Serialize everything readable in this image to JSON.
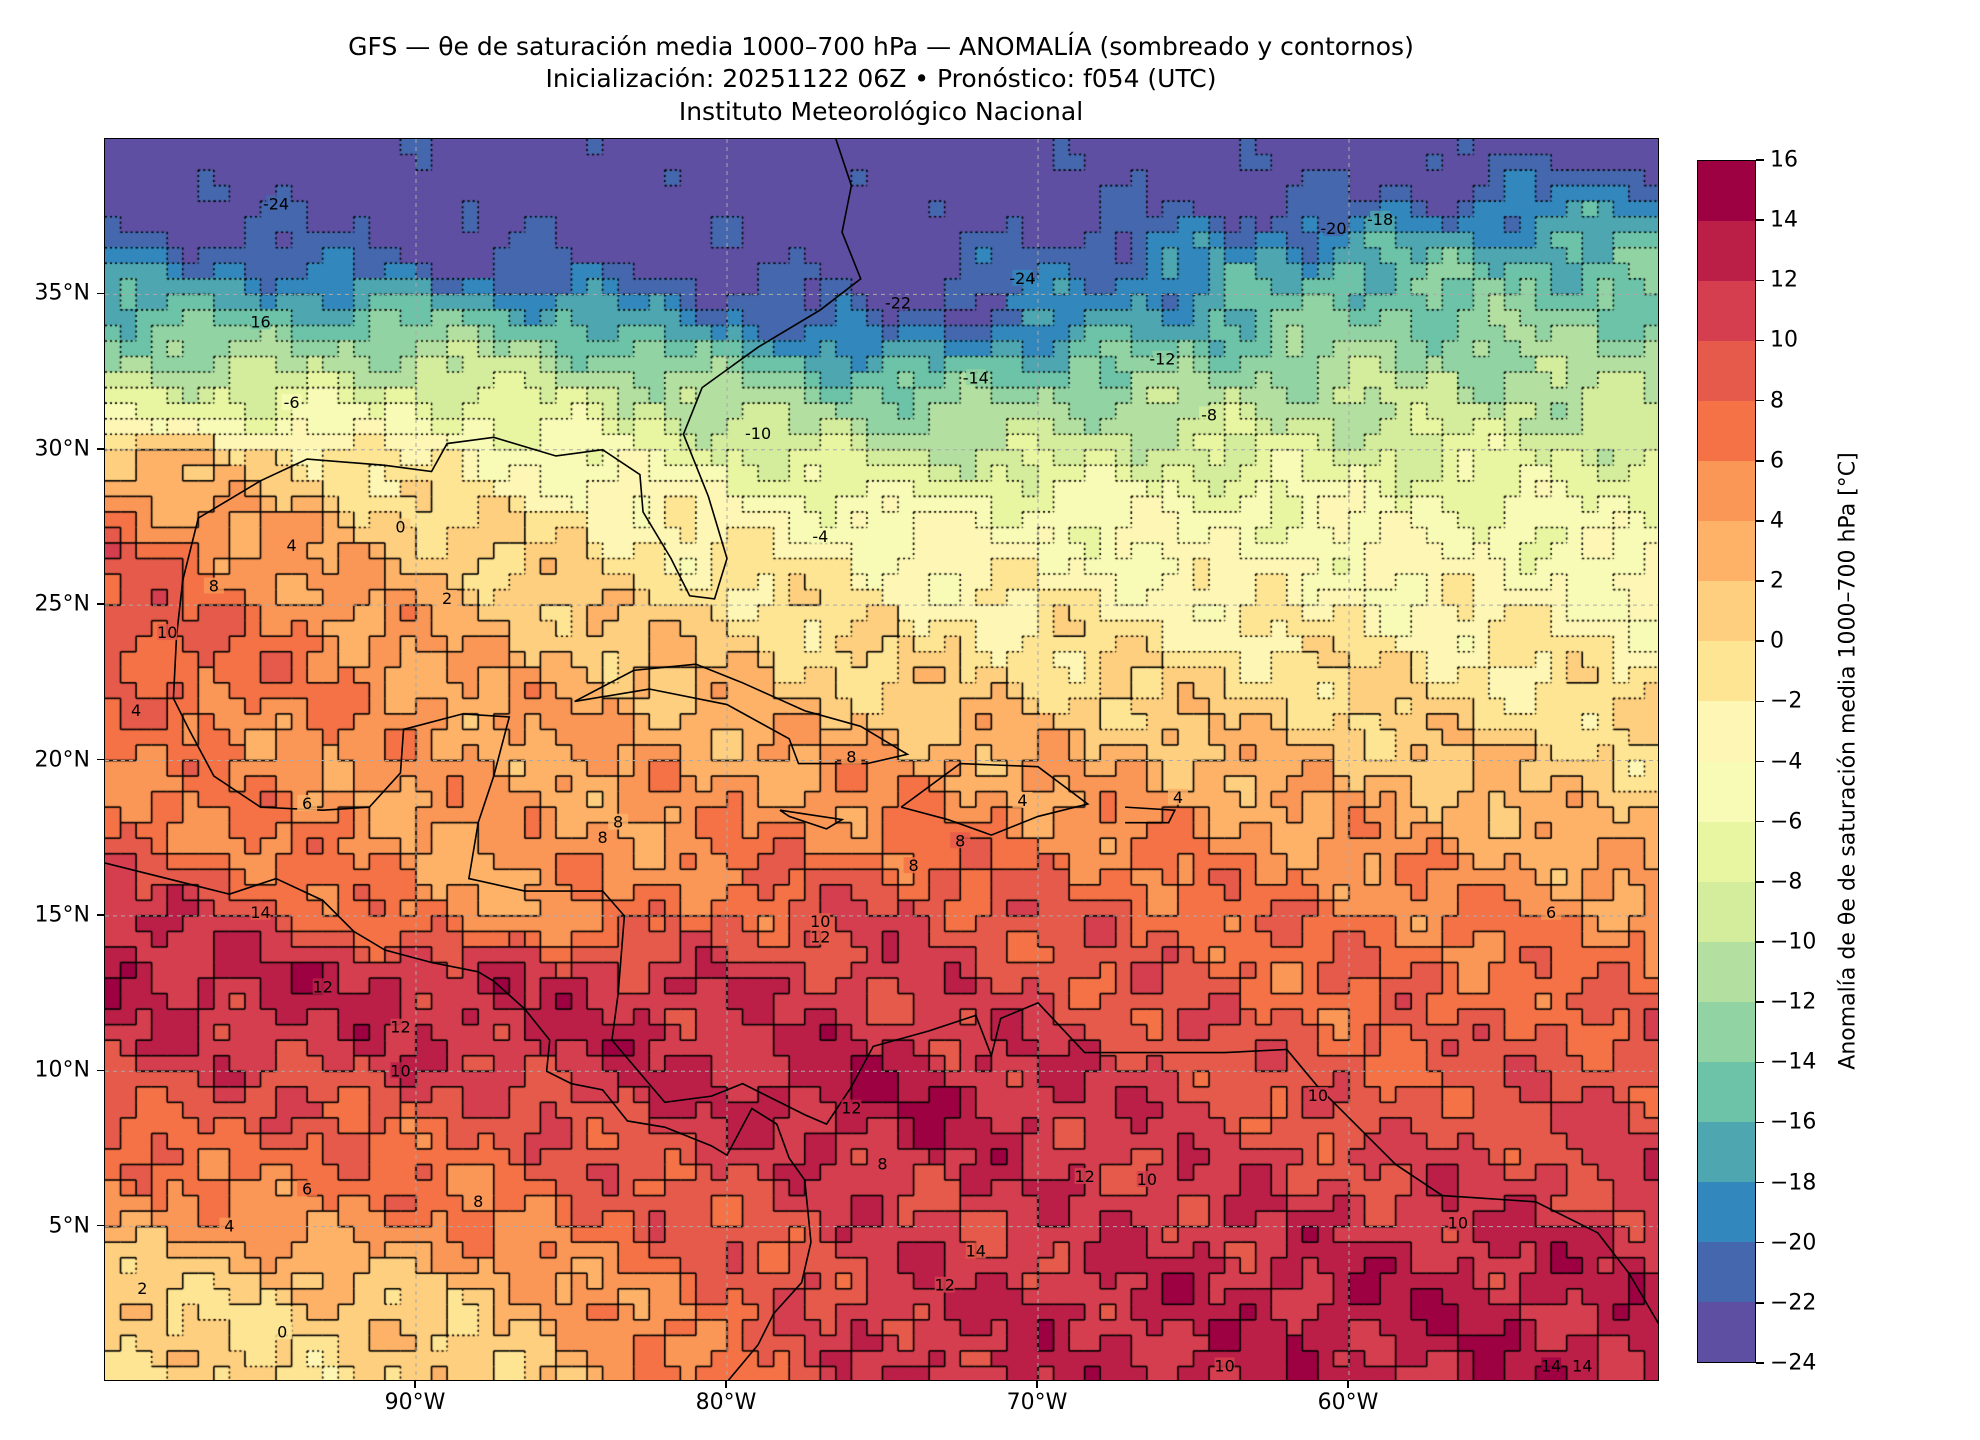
{
  "chart_data": {
    "type": "heatmap",
    "title": "GFS — θe de saturación media 1000–700 hPa — ANOMALÍA (sombreado y contornos)",
    "subtitle": "Inicialización: 20251122 06Z   •   Pronóstico: f054 (UTC)",
    "institution": "Instituto Meteorológico Nacional",
    "extent": {
      "lon": [
        -100,
        -50
      ],
      "lat": [
        0,
        40
      ]
    },
    "x_ticks": [
      {
        "value": -90,
        "label": "90°W"
      },
      {
        "value": -80,
        "label": "80°W"
      },
      {
        "value": -70,
        "label": "70°W"
      },
      {
        "value": -60,
        "label": "60°W"
      }
    ],
    "y_ticks": [
      {
        "value": 35,
        "label": "35°N"
      },
      {
        "value": 30,
        "label": "30°N"
      },
      {
        "value": 25,
        "label": "25°N"
      },
      {
        "value": 20,
        "label": "20°N"
      },
      {
        "value": 15,
        "label": "15°N"
      },
      {
        "value": 10,
        "label": "10°N"
      },
      {
        "value": 5,
        "label": "5°N"
      }
    ],
    "grid": true,
    "colorbar": {
      "label": "Anomalía de θe de saturación media 1000–700 hPa [°C]",
      "levels": [
        -24,
        -22,
        -20,
        -18,
        -16,
        -14,
        -12,
        -10,
        -8,
        -6,
        -4,
        -2,
        0,
        2,
        4,
        6,
        8,
        10,
        12,
        14,
        16
      ],
      "tick_labels": [
        "−24",
        "−22",
        "−20",
        "−18",
        "−16",
        "−14",
        "−12",
        "−10",
        "−8",
        "−6",
        "−4",
        "−2",
        "0",
        "2",
        "4",
        "6",
        "8",
        "10",
        "12",
        "14",
        "16"
      ],
      "colors": [
        "#5e4fa2",
        "#4467ad",
        "#3288bd",
        "#4da6b0",
        "#6cc3a7",
        "#91d3a3",
        "#b3e0a0",
        "#d3ed9c",
        "#e9f6a1",
        "#f7fbb5",
        "#fdf6b4",
        "#fee593",
        "#fdcf7f",
        "#fdb268",
        "#fa9656",
        "#f47245",
        "#e55a4a",
        "#d53e4f",
        "#bb1f48",
        "#9e0142"
      ],
      "placement": "right"
    },
    "profiles": [
      {
        "lon": -100,
        "lat": [
          0,
          3,
          5,
          8,
          11,
          13,
          15,
          17,
          20,
          24,
          27,
          30,
          31,
          33,
          35,
          37,
          39,
          40
        ],
        "value": [
          0,
          0,
          4,
          8,
          11,
          13,
          13,
          8,
          6,
          10,
          8,
          2,
          -6,
          -12,
          -17,
          -22,
          -24,
          -24
        ]
      },
      {
        "lon": -88,
        "lat": [
          0,
          3,
          5,
          8,
          11,
          13,
          15,
          18,
          22,
          25,
          28,
          30,
          32,
          34,
          36,
          38,
          40
        ],
        "value": [
          0,
          2,
          6,
          8,
          12,
          12,
          4,
          4,
          4,
          2,
          -1,
          -4,
          -8,
          -14,
          -22,
          -24,
          -24
        ]
      },
      {
        "lon": -75,
        "lat": [
          0,
          3,
          6,
          9,
          12,
          15,
          18,
          20,
          22,
          25,
          28,
          30,
          32,
          34,
          36,
          40
        ],
        "value": [
          12,
          11,
          11,
          14,
          11,
          10,
          6,
          4,
          1,
          -2,
          -5,
          -10,
          -14,
          -22,
          -24,
          -24
        ]
      },
      {
        "lon": -60,
        "lat": [
          0,
          3,
          6,
          8,
          11,
          14,
          17,
          20,
          22,
          25,
          28,
          30,
          33,
          36,
          38,
          40
        ],
        "value": [
          13,
          13,
          11,
          9,
          8,
          7,
          5,
          2,
          0,
          -3,
          -5,
          -8,
          -12,
          -16,
          -22,
          -24
        ]
      },
      {
        "lon": -50,
        "lat": [
          0,
          4,
          8,
          11,
          14,
          17,
          20,
          23,
          26,
          30,
          33,
          36,
          38,
          40
        ],
        "value": [
          13,
          12,
          10,
          9,
          6,
          3,
          0,
          -2,
          -4,
          -8,
          -12,
          -15,
          -18,
          -24
        ]
      }
    ],
    "contour_labels": [
      {
        "text": "-24",
        "lon": -94.5,
        "lat": 37.9
      },
      {
        "text": "-24",
        "lon": -70.5,
        "lat": 35.5
      },
      {
        "text": "-22",
        "lon": -74.5,
        "lat": 34.7
      },
      {
        "text": "-20",
        "lon": -60.5,
        "lat": 37.1
      },
      {
        "text": "-18",
        "lon": -59,
        "lat": 37.4
      },
      {
        "text": "16",
        "lon": -95,
        "lat": 34.1
      },
      {
        "text": "-14",
        "lon": -72,
        "lat": 32.3
      },
      {
        "text": "-12",
        "lon": -66,
        "lat": 32.9
      },
      {
        "text": "-10",
        "lon": -79,
        "lat": 30.5
      },
      {
        "text": "-8",
        "lon": -64.5,
        "lat": 31.1
      },
      {
        "text": "-6",
        "lon": -94,
        "lat": 31.5
      },
      {
        "text": "-4",
        "lon": -77,
        "lat": 27.2
      },
      {
        "text": "0",
        "lon": -90.5,
        "lat": 27.5
      },
      {
        "text": "2",
        "lon": -89,
        "lat": 25.2
      },
      {
        "text": "4",
        "lon": -94,
        "lat": 26.9
      },
      {
        "text": "8",
        "lon": -96.5,
        "lat": 25.6
      },
      {
        "text": "10",
        "lon": -98,
        "lat": 24.1
      },
      {
        "text": "4",
        "lon": -99,
        "lat": 21.6
      },
      {
        "text": "6",
        "lon": -93.5,
        "lat": 18.6
      },
      {
        "text": "8",
        "lon": -84,
        "lat": 17.5
      },
      {
        "text": "8",
        "lon": -83.5,
        "lat": 18
      },
      {
        "text": "8",
        "lon": -76,
        "lat": 20.1
      },
      {
        "text": "4",
        "lon": -70.5,
        "lat": 18.7
      },
      {
        "text": "4",
        "lon": -65.5,
        "lat": 18.8
      },
      {
        "text": "8",
        "lon": -72.5,
        "lat": 17.4
      },
      {
        "text": "8",
        "lon": -74,
        "lat": 16.6
      },
      {
        "text": "6",
        "lon": -53.5,
        "lat": 15.1
      },
      {
        "text": "14",
        "lon": -95,
        "lat": 15.1
      },
      {
        "text": "12",
        "lon": -93,
        "lat": 12.7
      },
      {
        "text": "12",
        "lon": -90.5,
        "lat": 11.4
      },
      {
        "text": "10",
        "lon": -90.5,
        "lat": 10
      },
      {
        "text": "10",
        "lon": -77,
        "lat": 14.8
      },
      {
        "text": "12",
        "lon": -77,
        "lat": 14.3
      },
      {
        "text": "12",
        "lon": -76,
        "lat": 8.8
      },
      {
        "text": "8",
        "lon": -75,
        "lat": 7
      },
      {
        "text": "12",
        "lon": -68.5,
        "lat": 6.6
      },
      {
        "text": "10",
        "lon": -66.5,
        "lat": 6.5
      },
      {
        "text": "10",
        "lon": -61,
        "lat": 9.2
      },
      {
        "text": "10",
        "lon": -56.5,
        "lat": 5.1
      },
      {
        "text": "14",
        "lon": -72,
        "lat": 4.2
      },
      {
        "text": "12",
        "lon": -73,
        "lat": 3.1
      },
      {
        "text": "10",
        "lon": -64,
        "lat": 0.5
      },
      {
        "text": "14",
        "lon": -53.5,
        "lat": 0.5
      },
      {
        "text": "14",
        "lon": -52.5,
        "lat": 0.5
      },
      {
        "text": "8",
        "lon": -88,
        "lat": 5.8
      },
      {
        "text": "6",
        "lon": -93.5,
        "lat": 6.2
      },
      {
        "text": "4",
        "lon": -96,
        "lat": 5
      },
      {
        "text": "2",
        "lon": -98.8,
        "lat": 3
      },
      {
        "text": "0",
        "lon": -94.3,
        "lat": 1.6
      }
    ]
  }
}
